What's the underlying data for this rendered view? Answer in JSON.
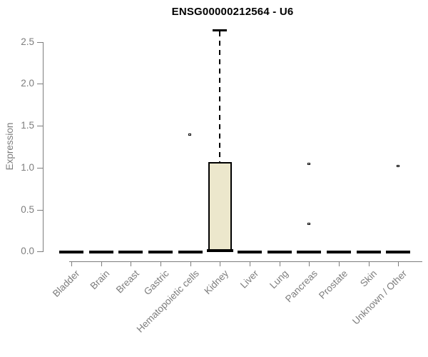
{
  "chart_data": {
    "type": "boxplot",
    "title": "ENSG00000212564 - U6",
    "ylabel": "Expression",
    "xlabel": "",
    "ylim": [
      0,
      2.65
    ],
    "yticks": [
      0,
      0.5,
      1,
      1.5,
      2,
      2.5
    ],
    "grid": false,
    "legend": null,
    "categories": [
      "Bladder",
      "Brain",
      "Breast",
      "Gastric",
      "Hematopoietic cells",
      "Kidney",
      "Liver",
      "Lung",
      "Pancreas",
      "Prostate",
      "Skin",
      "Unknown / Other"
    ],
    "boxes": [
      {
        "category": "Bladder",
        "q1": 0,
        "median": 0,
        "q3": 0,
        "whisker_low": 0,
        "whisker_high": 0,
        "outliers": []
      },
      {
        "category": "Brain",
        "q1": 0,
        "median": 0,
        "q3": 0,
        "whisker_low": 0,
        "whisker_high": 0,
        "outliers": []
      },
      {
        "category": "Breast",
        "q1": 0,
        "median": 0,
        "q3": 0,
        "whisker_low": 0,
        "whisker_high": 0,
        "outliers": []
      },
      {
        "category": "Gastric",
        "q1": 0,
        "median": 0,
        "q3": 0,
        "whisker_low": 0,
        "whisker_high": 0,
        "outliers": []
      },
      {
        "category": "Hematopoietic cells",
        "q1": 0,
        "median": 0,
        "q3": 0,
        "whisker_low": 0,
        "whisker_high": 0,
        "outliers": [
          1.39
        ]
      },
      {
        "category": "Kidney",
        "q1": 0,
        "median": 0.01,
        "q3": 1.07,
        "whisker_low": 0,
        "whisker_high": 2.64,
        "outliers": []
      },
      {
        "category": "Liver",
        "q1": 0,
        "median": 0,
        "q3": 0,
        "whisker_low": 0,
        "whisker_high": 0,
        "outliers": []
      },
      {
        "category": "Lung",
        "q1": 0,
        "median": 0,
        "q3": 0,
        "whisker_low": 0,
        "whisker_high": 0,
        "outliers": []
      },
      {
        "category": "Pancreas",
        "q1": 0,
        "median": 0,
        "q3": 0,
        "whisker_low": 0,
        "whisker_high": 0,
        "outliers": [
          1.04,
          0.33
        ]
      },
      {
        "category": "Prostate",
        "q1": 0,
        "median": 0,
        "q3": 0,
        "whisker_low": 0,
        "whisker_high": 0,
        "outliers": []
      },
      {
        "category": "Skin",
        "q1": 0,
        "median": 0,
        "q3": 0,
        "whisker_low": 0,
        "whisker_high": 0,
        "outliers": []
      },
      {
        "category": "Unknown / Other",
        "q1": 0,
        "median": 0,
        "q3": 0,
        "whisker_low": 0,
        "whisker_high": 0,
        "outliers": [
          1.02
        ]
      }
    ],
    "colors": {
      "box_fill": "#ECE7CC",
      "box_border": "#000000",
      "axis": "#7d7d7d",
      "tick_text": "#7d7d7d",
      "title_text": "#000000"
    }
  }
}
